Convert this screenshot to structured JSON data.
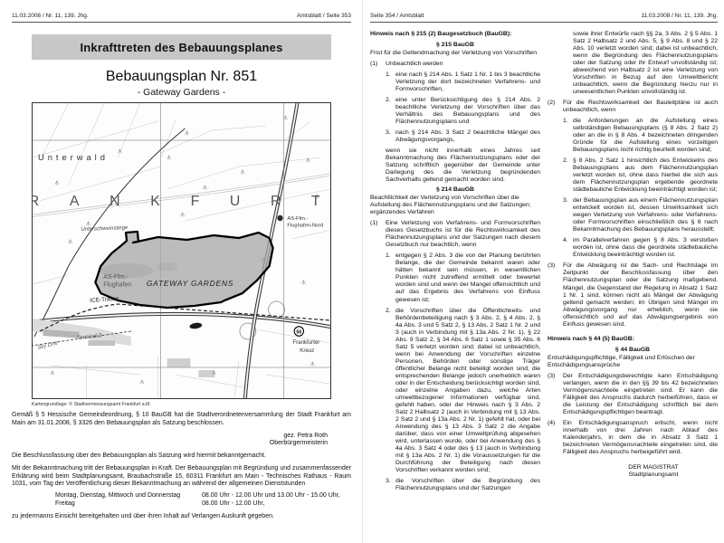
{
  "left": {
    "header_left": "11.03.2008 / Nr. 11, 139. Jhg.",
    "header_right": "Amtsblatt / Seite 353",
    "title": "Inkrafttreten des Bebauungsplanes",
    "map": {
      "title": "Bebauungsplan Nr. 851",
      "subtitle": "- Gateway Gardens -",
      "credit": "Kartengrundlage: © Stadtvermessungsamt Frankfurt a.M.",
      "labels": {
        "unterwald": "Unterwald",
        "frankfurt": "FRANKFURT",
        "unterschweinstiege": "Unterschweinstiege",
        "as_nord_1": "AS-Ffm.-",
        "as_nord_2": "Flughafen-Nord",
        "as_1": "AS-Ffm.-",
        "as_2": "Flughafen",
        "gateway": "GATEWAY GARDENS",
        "ice": "ICE-Trasse",
        "terminal2": "Terminal 2",
        "skyline": "Sky Line",
        "kreuz_1": "Frankfurter",
        "kreuz_2": "Kreuz",
        "badge50": "50"
      }
    },
    "para_resolution": "Gemäß § 5 Hessische Gemeindeordnung, § 10 BauGB hat die Stadtverordnetenversammlung der Stadt Frankfurt am Main am 31.01.2008, § 3326 den Bebauungsplan als Satzung beschlossen.",
    "signature": {
      "name": "gez. Petra Roth",
      "role": "Oberbürgermeisterin"
    },
    "para_announce": "Die Beschlussfassung über den Bebauungsplan als Satzung wird hiermit bekanntgemacht.",
    "para_inspection": "Mit der Bekanntmachung tritt der Bebauungsplan in Kraft. Der Bebauungsplan mit Begründung und zusammenfassender Erklärung wird beim Stadtplanungsamt, Braubachstraße 15, 60311 Frankfurt am Main - Technisches Rathaus - Raum 1031, vom Tag der Veröffentlichung dieser Bekanntmachung an während der allgemeinen Dienststunden",
    "schedule": [
      {
        "days": "Montag, Dienstag, Mittwoch und Donnerstag",
        "hours": "08.00 Uhr - 12.00 Uhr und 13.00 Uhr - 15.00 Uhr,"
      },
      {
        "days": "Freitag",
        "hours": "08.00 Uhr - 12.00 Uhr,"
      }
    ],
    "para_final": "zu jedermanns Einsicht bereitgehalten und über ihren Inhalt auf Verlangen Auskunft gegeben."
  },
  "right": {
    "header_left": "Seite 354 / Amtsblatt",
    "header_right": "11.03.2008 / Nr. 11, 139. Jhg.",
    "columns": [
      [
        {
          "t": "h",
          "x": "Hinweis nach § 215 (2) Baugesetzbuch (BauGB):"
        },
        {
          "t": "c",
          "x": "§ 215 BauGB"
        },
        {
          "t": "p",
          "x": "Frist für die Geltendmachung der Verletzung von Vorschriften"
        },
        {
          "t": "n",
          "m": "(1)",
          "x": "Unbeachtlich werden"
        },
        {
          "t": "li",
          "m": "1.",
          "x": "eine nach § 214 Abs. 1 Satz 1 Nr. 1 bis 3 beachtliche Verletzung der dort bezeichneten Verfahrens- und Formvorschriften,"
        },
        {
          "t": "li",
          "m": "2.",
          "x": "eine unter Berücksichtigung des § 214 Abs. 2 beachtliche Verletzung der Vorschriften über das Verhältnis des Bebauungsplans und des Flächennutzungsplans und"
        },
        {
          "t": "li",
          "m": "3.",
          "x": "nach § 214 Abs. 3 Satz 2 beachtliche Mängel des Abwägungsvorgangs,"
        },
        {
          "t": "cont",
          "x": "wenn sie nicht innerhalb eines Jahres seit Bekanntmachung des Flächennutzungsplans oder der Satzung schriftlich gegenüber der Gemeinde unter Darlegung des die Verletzung begründenden Sachverhalts geltend gemacht worden sind."
        },
        {
          "t": "c",
          "x": "§ 214 BauGB"
        },
        {
          "t": "p",
          "x": "Beachtlichkeit der Verletzung von Vorschriften über die Aufstellung des Flächennutzungsplans und der Satzungen; ergänzendes Verfahren"
        },
        {
          "t": "n",
          "m": "(1)",
          "x": "Eine Verletzung von Verfahrens- und Formvorschriften dieses Gesetzbuchs ist für die Rechtswirksamkeit des Flächennutzungsplans und der Satzungen nach diesem Gesetzbuch nur beachtlich, wenn"
        },
        {
          "t": "li",
          "m": "1.",
          "x": "entgegen § 2 Abs. 3 die von der Planung berührten Belange, die der Gemeinde bekannt waren oder hätten bekannt sein müssen, in wesentlichen Punkten nicht zutreffend ermittelt oder bewertet worden sind und wenn der Mangel offensichtlich und auf das Ergebnis des Verfahrens von Einfluss gewesen ist;"
        },
        {
          "t": "li",
          "m": "2.",
          "x": "die Vorschriften über die Öffentlichkeits- und Behördenbeteiligung nach § 3 Abs. 2, § 4 Abs. 2, § 4a Abs. 3 und 5 Satz 2, § 13 Abs. 2 Satz 1 Nr. 2 und 3 (auch in Verbindung mit § 13a Abs. 2 Nr. 1), § 22 Abs. 9 Satz 2, § 34 Abs. 6 Satz 1 sowie § 35 Abs. 6 Satz 5 verletzt worden sind; dabei ist unbeachtlich, wenn bei Anwendung der Vorschriften einzelne Personen, Behörden oder sonstige Träger öffentlicher Belange nicht beteiligt worden sind, die entsprechenden Belange jedoch unerheblich waren oder in der Entscheidung berücksichtigt worden sind, oder einzelne Angaben dazu, welche Arten umweltbezogener Informationen verfügbar sind, gefehlt haben, oder der Hinweis nach § 3 Abs. 2 Satz 2 Halbsatz 2 (auch in Verbindung mit § 13 Abs. 2 Satz 2 und § 13a Abs. 2 Nr. 1) gefehlt hat, oder bei Anwendung des § 13 Abs. 3 Satz 2 die Angabe darüber, dass von einer Umweltprüfung abgesehen wird, unterlassen wurde, oder bei Anwendung des § 4a Abs. 3 Satz 4 oder des § 13 (auch in Verbindung mit § 13a Abs. 2 Nr. 1) die Voraussetzungen für die Durchführung der Beteiligung nach diesen Vorschriften verkannt worden sind;"
        },
        {
          "t": "li",
          "m": "3.",
          "x": "die Vorschriften über die Begründung des Flächennutzungsplans und der Satzungen"
        }
      ],
      [
        {
          "t": "cont2",
          "x": "sowie ihrer Entwürfe nach §§ 2a, 3 Abs. 2 § 5 Abs. 1 Satz 2 Halbsatz 2 und Abs. 5, § 9 Abs. 8 und § 22 Abs. 10 verletzt worden sind; dabei ist unbeachtlich, wenn die Begründung des Flächennutzungsplans oder der Satzung oder ihr Entwurf unvollständig ist; abweichend von Halbsatz 2 ist eine Verletzung von Vorschriften in Bezug auf den Umweltbericht unbeachtlich, wenn die Begründung hierzu nur in unwesentlichen Punkten unvollständig ist."
        },
        {
          "t": "n",
          "m": "(2)",
          "x": "Für die Rechtswirksamkeit der Bauleitpläne ist auch unbeachtlich, wenn"
        },
        {
          "t": "li",
          "m": "1.",
          "x": "die Anforderungen an die Aufstellung eines selbständigen Bebauungsplans (§ 8 Abs. 2 Satz 2) oder an die in § 8 Abs. 4 bezeichneten dringenden Gründe für die Aufstellung eines vorzeitigen Bebauungsplans nicht richtig beurteilt worden sind;"
        },
        {
          "t": "li",
          "m": "2.",
          "x": "§ 8 Abs. 2 Satz 1 hinsichtlich des Entwickelns des Bebauungsplans aus dem Flächennutzungsplan verletzt worden ist, ohne dass hierbei die sich aus dem Flächennutzungsplan ergebende geordnete städtebauliche Entwicklung beeinträchtigt worden ist;"
        },
        {
          "t": "li",
          "m": "3.",
          "x": "der Bebauungsplan aus einem Flächennutzungsplan entwickelt worden ist, dessen Unwirksamkeit sich wegen Verletzung von Verfahrens- oder Verfahrens- oder Formvorschriften einschließlich des § 6 nach Bekanntmachung des Bebauungsplans herausstellt;"
        },
        {
          "t": "li",
          "m": "4.",
          "x": "im Parallelverfahren gegen § 8 Abs. 3 verstoßen worden ist, ohne dass die geordnete städtebauliche Entwicklung beeinträchtigt worden ist."
        },
        {
          "t": "n",
          "m": "(3)",
          "x": "Für die Abwägung ist die Sach- und Rechtslage im Zeitpunkt der Beschlussfassung über den Flächennutzungsplan oder die Satzung maßgebend. Mängel, die Gegenstand der Regelung in Absatz 1 Satz 1 Nr. 1 sind, können nicht als Mängel der Abwägung geltend gemacht werden; im Übrigen sind Mängel im Abwägungsvorgang nur erheblich, wenn sie offensichtlich und auf das Abwägungsergebnis von Einfluss gewesen sind."
        },
        {
          "t": "h2",
          "x": "Hinweis nach § 44 (5) BauGB:"
        },
        {
          "t": "c",
          "x": "§ 44 BauGB"
        },
        {
          "t": "p",
          "x": "Entschädigungspflichtige, Fälligkeit und Erlöschen der Entschädigungsansprüche"
        },
        {
          "t": "n",
          "m": "(3)",
          "x": "Der Entschädigungsberechtigte kann Entschädigung verlangen, wenn die in den §§ 39 bis 42 bezeichneten Vermögensnachteile eingetreten sind. Er kann die Fälligkeit des Anspruchs dadurch herbeiführen, dass er die Leistung der Entschädigung schriftlich bei dem Entschädigungspflichtigen beantragt."
        },
        {
          "t": "n",
          "m": "(4)",
          "x": "Ein Entschädigungsanspruch erlischt, wenn nicht innerhalb von drei Jahren nach Ablauf des Kalenderjahrs, in dem die in Absatz 3 Satz 1 bezeichneten Vermögensnachteile eingetreten sind, die Fälligkeit des Anspruchs herbeigeführt wird."
        },
        {
          "t": "sig",
          "x": "DER MAGISTRAT"
        },
        {
          "t": "sig2",
          "x": "Stadtplanungsamt"
        }
      ]
    ]
  }
}
